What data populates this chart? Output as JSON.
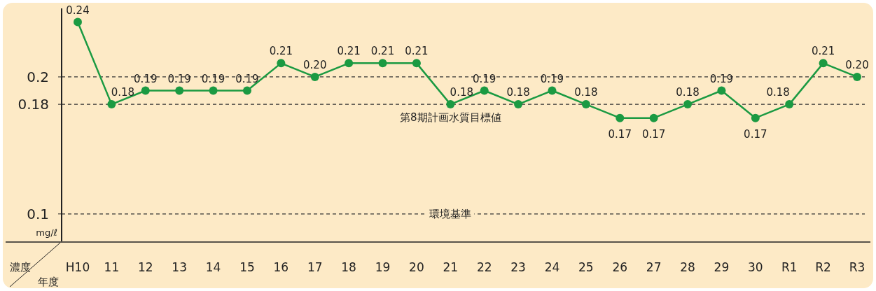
{
  "chart_data": {
    "type": "line",
    "xlabel": "年度",
    "ylabel": "mg/ℓ",
    "annotations": [
      "濃度"
    ],
    "categories": [
      "H10",
      "11",
      "12",
      "13",
      "14",
      "15",
      "16",
      "17",
      "18",
      "19",
      "20",
      "21",
      "22",
      "23",
      "24",
      "25",
      "26",
      "27",
      "28",
      "29",
      "30",
      "R1",
      "R2",
      "R3"
    ],
    "series": [
      {
        "color": "#1b9a42",
        "values": [
          0.24,
          0.18,
          0.19,
          0.19,
          0.19,
          0.19,
          0.21,
          0.2,
          0.21,
          0.21,
          0.21,
          0.18,
          0.19,
          0.18,
          0.19,
          0.18,
          0.17,
          0.17,
          0.18,
          0.19,
          0.17,
          0.18,
          0.21,
          0.2
        ],
        "value_labels": [
          "0.24",
          "0.18",
          "0.19",
          "0.19",
          "0.19",
          "0.19",
          "0.21",
          "0.20",
          "0.21",
          "0.21",
          "0.21",
          "0.18",
          "0.19",
          "0.18",
          "0.19",
          "0.18",
          "0.17",
          "0.17",
          "0.18",
          "0.19",
          "0.17",
          "0.18",
          "0.21",
          "0.20"
        ]
      }
    ],
    "ylim": [
      0.08,
      0.25
    ],
    "yticks": [
      0.1,
      0.18,
      0.2
    ],
    "ref_lines": [
      {
        "axis": "y",
        "value": 0.2,
        "line_style": "dashed",
        "color": "#333333"
      },
      {
        "axis": "y",
        "value": 0.18,
        "label": "第8期計画水質目標値",
        "line_style": "dashed",
        "color": "#333333"
      },
      {
        "axis": "y",
        "value": 0.1,
        "label": "環境基準",
        "line_style": "dashed",
        "color": "#333333"
      }
    ],
    "marker": "circle",
    "line_style": "solid"
  }
}
